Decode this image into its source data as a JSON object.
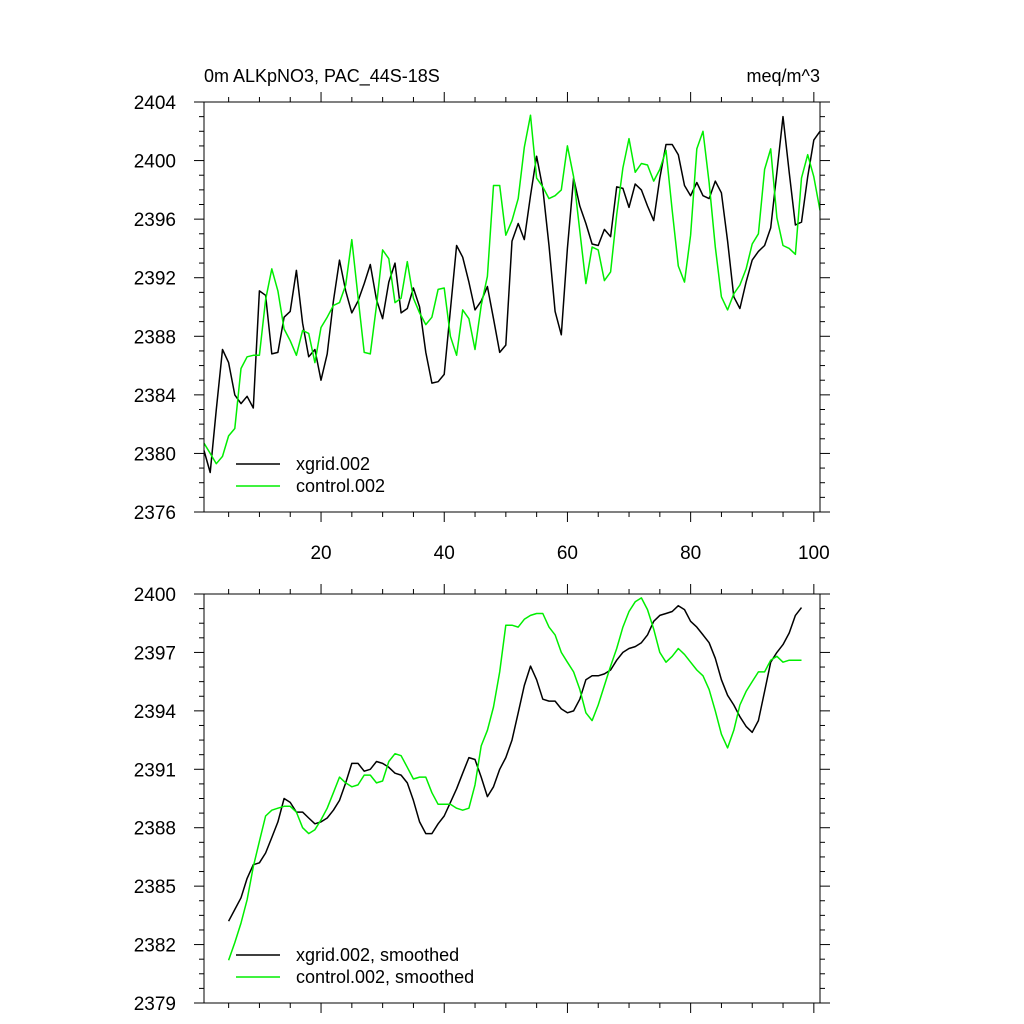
{
  "chart_data": [
    {
      "type": "line",
      "title_left": "0m ALKpNO3, PAC_44S-18S",
      "title_right": "meq/m^3",
      "xlabel": "",
      "ylabel": "",
      "xlim": [
        1,
        101
      ],
      "ylim": [
        2376,
        2404
      ],
      "yticks": [
        2376,
        2380,
        2384,
        2388,
        2392,
        2396,
        2400,
        2404
      ],
      "ytick_labels": [
        "2376",
        "2380",
        "2384",
        "2388",
        "2392",
        "2396",
        "2400",
        "2404"
      ],
      "xticks": [
        20,
        40,
        60,
        80,
        100
      ],
      "xtick_labels": [
        "20",
        "40",
        "60",
        "80",
        "100"
      ],
      "legend_position": "bottom-left",
      "series": [
        {
          "name": "xgrid.002",
          "color": "#000000",
          "x": [
            1,
            2,
            3,
            4,
            5,
            6,
            7,
            8,
            9,
            10,
            11,
            12,
            13,
            14,
            15,
            16,
            17,
            18,
            19,
            20,
            21,
            22,
            23,
            24,
            25,
            26,
            27,
            28,
            29,
            30,
            31,
            32,
            33,
            34,
            35,
            36,
            37,
            38,
            39,
            40,
            41,
            42,
            43,
            44,
            45,
            46,
            47,
            48,
            49,
            50,
            51,
            52,
            53,
            54,
            55,
            56,
            57,
            58,
            59,
            60,
            61,
            62,
            63,
            64,
            65,
            66,
            67,
            68,
            69,
            70,
            71,
            72,
            73,
            74,
            75,
            76,
            77,
            78,
            79,
            80,
            81,
            82,
            83,
            84,
            85,
            86,
            87,
            88,
            89,
            90,
            91,
            92,
            93,
            94,
            95,
            96,
            97,
            98,
            99,
            100,
            101
          ],
          "values": [
            2380.2,
            2378.7,
            2383.0,
            2387.1,
            2386.2,
            2384.0,
            2383.4,
            2383.9,
            2383.1,
            2391.1,
            2390.8,
            2386.8,
            2386.9,
            2389.3,
            2389.7,
            2392.5,
            2388.9,
            2386.6,
            2387.1,
            2385.0,
            2386.8,
            2390.4,
            2393.2,
            2391.1,
            2389.6,
            2390.4,
            2391.6,
            2392.9,
            2390.5,
            2389.2,
            2391.7,
            2393.0,
            2389.6,
            2389.9,
            2391.3,
            2390.0,
            2386.9,
            2384.8,
            2384.9,
            2385.4,
            2389.8,
            2394.2,
            2393.4,
            2391.7,
            2389.8,
            2390.4,
            2391.4,
            2389.2,
            2386.9,
            2387.4,
            2394.5,
            2395.7,
            2394.6,
            2397.6,
            2400.3,
            2398.1,
            2394.2,
            2389.7,
            2388.1,
            2394.0,
            2398.8,
            2396.9,
            2395.7,
            2394.3,
            2394.2,
            2395.3,
            2394.8,
            2398.2,
            2398.1,
            2396.8,
            2398.4,
            2398.0,
            2396.9,
            2395.9,
            2398.8,
            2401.1,
            2401.1,
            2400.4,
            2398.3,
            2397.6,
            2398.5,
            2397.6,
            2397.4,
            2398.6,
            2397.8,
            2394.5,
            2390.7,
            2389.9,
            2391.7,
            2393.2,
            2393.8,
            2394.2,
            2395.4,
            2399.2,
            2403.0,
            2399.2,
            2395.6,
            2395.8,
            2398.9,
            2401.4,
            2402.0
          ]
        },
        {
          "name": "control.002",
          "color": "#00ee00",
          "x": [
            1,
            2,
            3,
            4,
            5,
            6,
            7,
            8,
            9,
            10,
            11,
            12,
            13,
            14,
            15,
            16,
            17,
            18,
            19,
            20,
            21,
            22,
            23,
            24,
            25,
            26,
            27,
            28,
            29,
            30,
            31,
            32,
            33,
            34,
            35,
            36,
            37,
            38,
            39,
            40,
            41,
            42,
            43,
            44,
            45,
            46,
            47,
            48,
            49,
            50,
            51,
            52,
            53,
            54,
            55,
            56,
            57,
            58,
            59,
            60,
            61,
            62,
            63,
            64,
            65,
            66,
            67,
            68,
            69,
            70,
            71,
            72,
            73,
            74,
            75,
            76,
            77,
            78,
            79,
            80,
            81,
            82,
            83,
            84,
            85,
            86,
            87,
            88,
            89,
            90,
            91,
            92,
            93,
            94,
            95,
            96,
            97,
            98,
            99,
            100,
            101
          ],
          "values": [
            2380.7,
            2380.0,
            2379.3,
            2379.8,
            2381.2,
            2381.7,
            2385.8,
            2386.6,
            2386.7,
            2386.7,
            2390.5,
            2392.6,
            2391.1,
            2388.5,
            2387.7,
            2386.7,
            2388.4,
            2388.2,
            2386.2,
            2388.6,
            2389.3,
            2390.1,
            2390.3,
            2391.5,
            2394.6,
            2390.7,
            2386.9,
            2386.8,
            2390.1,
            2393.9,
            2393.3,
            2390.3,
            2390.6,
            2393.1,
            2390.6,
            2389.6,
            2388.8,
            2389.3,
            2391.2,
            2391.3,
            2388.0,
            2386.7,
            2389.8,
            2389.2,
            2387.1,
            2390.1,
            2392.1,
            2398.3,
            2398.3,
            2394.9,
            2395.9,
            2397.4,
            2400.9,
            2403.1,
            2398.8,
            2398.2,
            2397.4,
            2397.6,
            2398.0,
            2401.0,
            2398.9,
            2395.2,
            2391.6,
            2394.1,
            2393.9,
            2391.8,
            2392.4,
            2396.3,
            2399.5,
            2401.5,
            2399.2,
            2399.8,
            2399.7,
            2398.6,
            2399.4,
            2400.7,
            2396.6,
            2392.8,
            2391.7,
            2394.9,
            2400.8,
            2402.0,
            2398.5,
            2394.1,
            2390.7,
            2389.8,
            2390.9,
            2391.5,
            2392.6,
            2394.3,
            2395.0,
            2399.4,
            2400.8,
            2396.1,
            2394.2,
            2394.0,
            2393.6,
            2398.8,
            2400.4,
            2398.9,
            2396.6
          ]
        }
      ]
    },
    {
      "type": "line",
      "title": "",
      "xlabel": "",
      "ylabel": "",
      "xlim": [
        1,
        101
      ],
      "ylim": [
        2379,
        2400
      ],
      "yticks": [
        2379,
        2382,
        2385,
        2388,
        2391,
        2394,
        2397,
        2400
      ],
      "ytick_labels": [
        "2379",
        "2382",
        "2385",
        "2388",
        "2391",
        "2394",
        "2397",
        "2400"
      ],
      "xticks": [
        20,
        40,
        60,
        80,
        100
      ],
      "legend_position": "bottom-left",
      "series": [
        {
          "name": "xgrid.002, smoothed",
          "color": "#000000",
          "x": [
            5,
            6,
            7,
            8,
            9,
            10,
            11,
            12,
            13,
            14,
            15,
            16,
            17,
            18,
            19,
            20,
            21,
            22,
            23,
            24,
            25,
            26,
            27,
            28,
            29,
            30,
            31,
            32,
            33,
            34,
            35,
            36,
            37,
            38,
            39,
            40,
            41,
            42,
            43,
            44,
            45,
            46,
            47,
            48,
            49,
            50,
            51,
            52,
            53,
            54,
            55,
            56,
            57,
            58,
            59,
            60,
            61,
            62,
            63,
            64,
            65,
            66,
            67,
            68,
            69,
            70,
            71,
            72,
            73,
            74,
            75,
            76,
            77,
            78,
            79,
            80,
            81,
            82,
            83,
            84,
            85,
            86,
            87,
            88,
            89,
            90,
            91,
            92,
            93,
            94,
            95,
            96,
            97,
            98
          ],
          "values": [
            2383.2,
            2383.8,
            2384.4,
            2385.4,
            2386.1,
            2386.2,
            2386.7,
            2387.5,
            2388.3,
            2389.5,
            2389.3,
            2388.8,
            2388.8,
            2388.5,
            2388.2,
            2388.3,
            2388.5,
            2388.9,
            2389.4,
            2390.3,
            2391.3,
            2391.3,
            2390.9,
            2391.0,
            2391.4,
            2391.3,
            2391.1,
            2390.8,
            2390.7,
            2390.3,
            2389.4,
            2388.3,
            2387.7,
            2387.7,
            2388.2,
            2388.6,
            2389.3,
            2390.0,
            2390.8,
            2391.6,
            2391.5,
            2390.6,
            2389.6,
            2390.1,
            2391.0,
            2391.6,
            2392.5,
            2393.9,
            2395.3,
            2396.3,
            2395.6,
            2394.6,
            2394.5,
            2394.5,
            2394.1,
            2393.9,
            2394.0,
            2394.6,
            2395.6,
            2395.8,
            2395.8,
            2395.9,
            2396.1,
            2396.6,
            2397.0,
            2397.2,
            2397.3,
            2397.5,
            2397.9,
            2398.6,
            2398.9,
            2399.0,
            2399.1,
            2399.4,
            2399.2,
            2398.6,
            2398.3,
            2397.9,
            2397.5,
            2396.7,
            2395.6,
            2394.8,
            2394.3,
            2393.7,
            2393.2,
            2392.9,
            2393.5,
            2395.0,
            2396.5,
            2397.0,
            2397.4,
            2398.0,
            2398.9,
            2399.3
          ]
        },
        {
          "name": "control.002, smoothed",
          "color": "#00ee00",
          "x": [
            5,
            6,
            7,
            8,
            9,
            10,
            11,
            12,
            13,
            14,
            15,
            16,
            17,
            18,
            19,
            20,
            21,
            22,
            23,
            24,
            25,
            26,
            27,
            28,
            29,
            30,
            31,
            32,
            33,
            34,
            35,
            36,
            37,
            38,
            39,
            40,
            41,
            42,
            43,
            44,
            45,
            46,
            47,
            48,
            49,
            50,
            51,
            52,
            53,
            54,
            55,
            56,
            57,
            58,
            59,
            60,
            61,
            62,
            63,
            64,
            65,
            66,
            67,
            68,
            69,
            70,
            71,
            72,
            73,
            74,
            75,
            76,
            77,
            78,
            79,
            80,
            81,
            82,
            83,
            84,
            85,
            86,
            87,
            88,
            89,
            90,
            91,
            92,
            93,
            94,
            95,
            96,
            97,
            98
          ],
          "values": [
            2381.2,
            2382.1,
            2383.1,
            2384.3,
            2386.0,
            2387.3,
            2388.6,
            2388.9,
            2389.0,
            2389.1,
            2389.1,
            2388.8,
            2388.0,
            2387.7,
            2387.9,
            2388.4,
            2389.0,
            2389.8,
            2390.6,
            2390.3,
            2390.1,
            2390.2,
            2390.7,
            2390.7,
            2390.3,
            2390.4,
            2391.4,
            2391.8,
            2391.7,
            2391.1,
            2390.5,
            2390.6,
            2390.6,
            2389.8,
            2389.2,
            2389.2,
            2389.2,
            2389.0,
            2388.9,
            2389.0,
            2390.2,
            2392.2,
            2393.0,
            2394.2,
            2396.0,
            2398.4,
            2398.4,
            2398.3,
            2398.7,
            2398.9,
            2399.0,
            2399.0,
            2398.3,
            2397.9,
            2397.0,
            2396.5,
            2396.0,
            2395.1,
            2393.9,
            2393.5,
            2394.3,
            2395.3,
            2396.3,
            2397.2,
            2398.3,
            2399.1,
            2399.6,
            2399.8,
            2399.2,
            2398.2,
            2397.0,
            2396.5,
            2396.8,
            2397.2,
            2396.9,
            2396.5,
            2396.1,
            2395.8,
            2395.1,
            2394.0,
            2392.8,
            2392.1,
            2393.0,
            2394.3,
            2395.0,
            2395.5,
            2396.0,
            2396.0,
            2396.6,
            2396.8,
            2396.5,
            2396.6,
            2396.6,
            2396.6
          ]
        }
      ]
    }
  ]
}
